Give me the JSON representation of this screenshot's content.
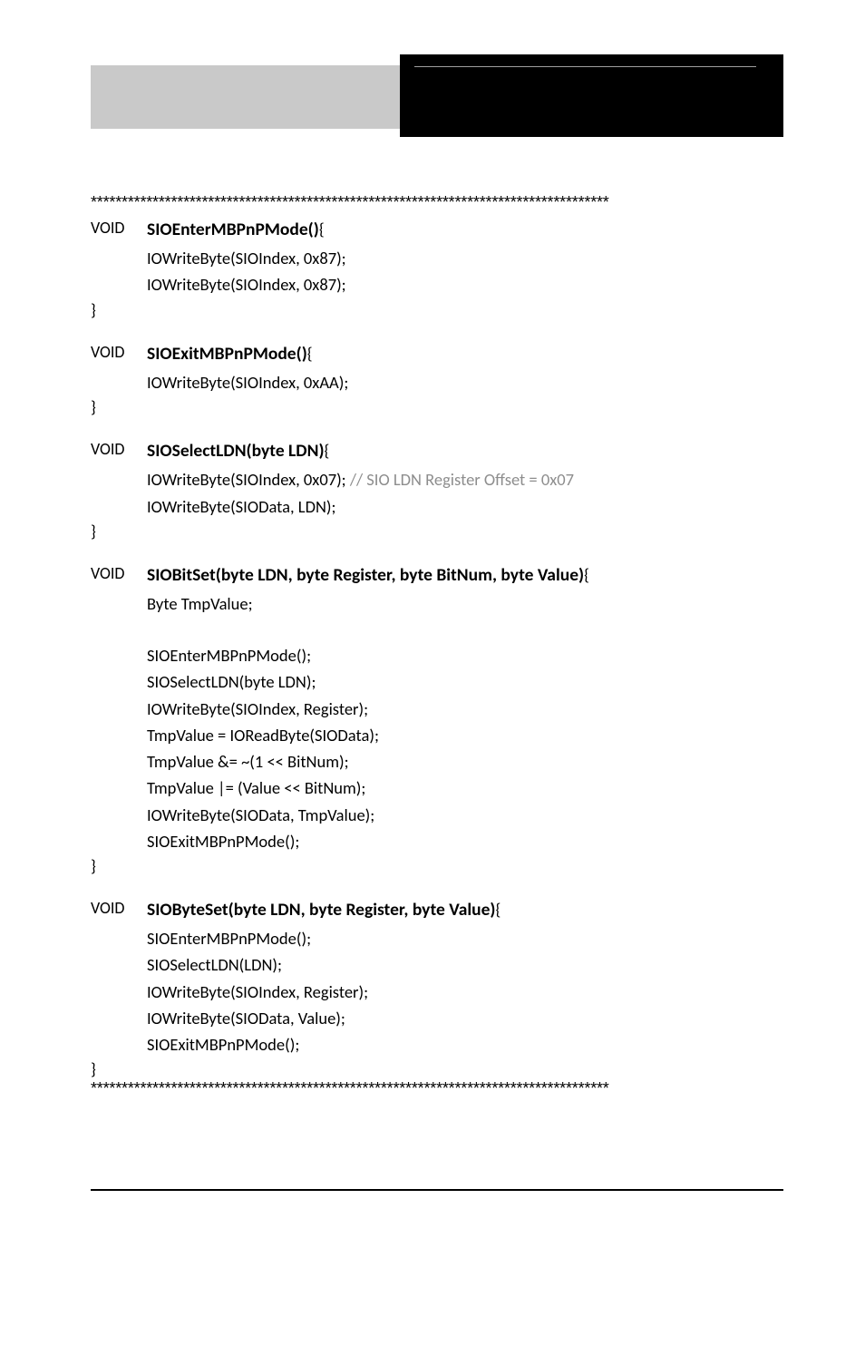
{
  "separator": "************************************************************************************",
  "kw_void": "VOID",
  "functions": [
    {
      "signature": "SIOEnterMBPnPMode()",
      "open_brace": "{",
      "body": [
        "IOWriteByte(SIOIndex, 0x87);",
        "IOWriteByte(SIOIndex, 0x87);"
      ]
    },
    {
      "signature": "SIOExitMBPnPMode()",
      "open_brace": "{",
      "body": [
        "IOWriteByte(SIOIndex, 0xAA);"
      ]
    },
    {
      "signature": "SIOSelectLDN(byte LDN)",
      "open_brace": "{",
      "body": [
        {
          "code": "IOWriteByte(SIOIndex, 0x07);",
          "comment": " // SIO LDN Register Offset = 0x07"
        },
        "IOWriteByte(SIOData, LDN);"
      ]
    },
    {
      "signature": "SIOBitSet(byte LDN, byte Register, byte BitNum, byte Value)",
      "open_brace": "{",
      "body": [
        "Byte TmpValue;",
        "",
        "SIOEnterMBPnPMode();",
        "SIOSelectLDN(byte LDN);",
        "IOWriteByte(SIOIndex, Register);",
        "TmpValue = IOReadByte(SIOData);",
        "TmpValue &= ~(1 << BitNum);",
        "TmpValue |= (Value << BitNum);",
        "IOWriteByte(SIOData, TmpValue);",
        "SIOExitMBPnPMode();"
      ]
    },
    {
      "signature": "SIOByteSet(byte LDN, byte Register, byte Value)",
      "open_brace": "{",
      "body": [
        "SIOEnterMBPnPMode();",
        "SIOSelectLDN(LDN);",
        "IOWriteByte(SIOIndex, Register);",
        "IOWriteByte(SIOData, Value);",
        "SIOExitMBPnPMode();"
      ]
    }
  ],
  "close_brace": "}"
}
